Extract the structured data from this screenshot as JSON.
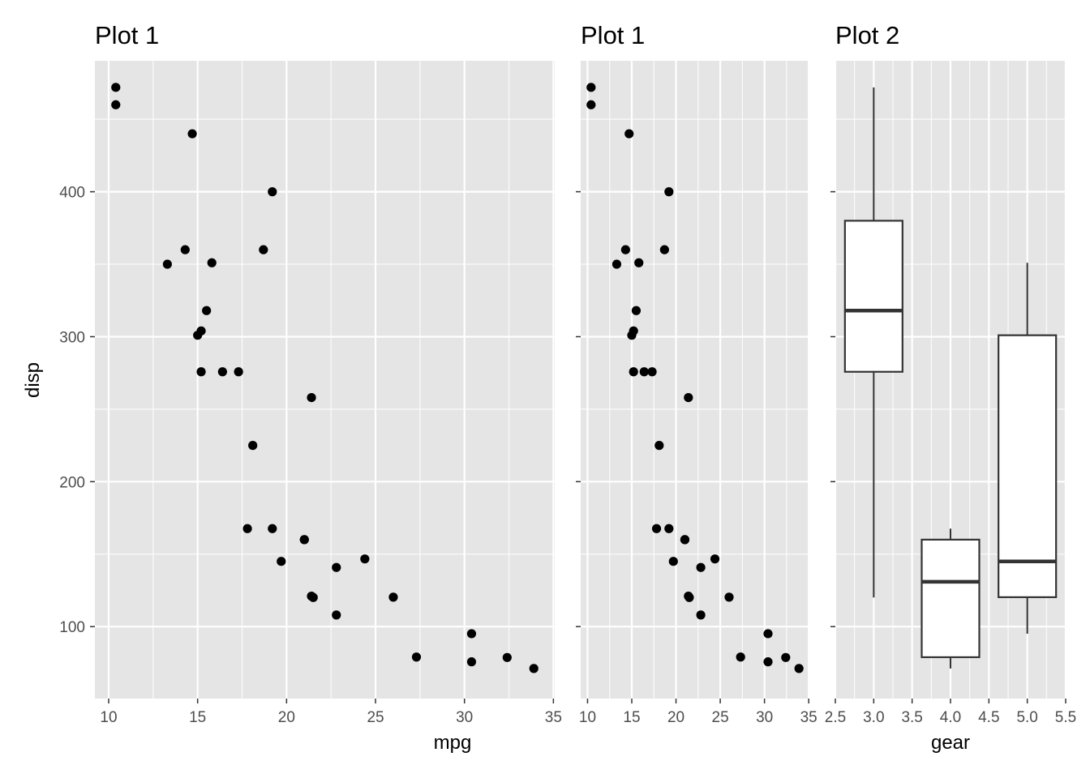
{
  "chart_data": [
    {
      "type": "scatter",
      "title": "Plot 1",
      "xlabel": "mpg",
      "ylabel": "disp",
      "xlim": [
        9.225,
        35.075
      ],
      "ylim": [
        50.35,
        490.35
      ],
      "x_ticks": [
        "10",
        "15",
        "20",
        "25",
        "30",
        "35"
      ],
      "y_ticks": [
        "100",
        "200",
        "300",
        "400"
      ],
      "points": [
        [
          21.0,
          160
        ],
        [
          21.0,
          160
        ],
        [
          22.8,
          108
        ],
        [
          21.4,
          258
        ],
        [
          18.7,
          360
        ],
        [
          18.1,
          225
        ],
        [
          14.3,
          360
        ],
        [
          24.4,
          146.7
        ],
        [
          22.8,
          140.8
        ],
        [
          19.2,
          167.6
        ],
        [
          17.8,
          167.6
        ],
        [
          16.4,
          275.8
        ],
        [
          17.3,
          275.8
        ],
        [
          15.2,
          275.8
        ],
        [
          10.4,
          472
        ],
        [
          10.4,
          460
        ],
        [
          14.7,
          440
        ],
        [
          32.4,
          78.7
        ],
        [
          30.4,
          75.7
        ],
        [
          33.9,
          71.1
        ],
        [
          21.5,
          120.1
        ],
        [
          15.5,
          318
        ],
        [
          15.2,
          304
        ],
        [
          13.3,
          350
        ],
        [
          19.2,
          400
        ],
        [
          27.3,
          79
        ],
        [
          26.0,
          120.3
        ],
        [
          30.4,
          95.1
        ],
        [
          15.8,
          351
        ],
        [
          19.7,
          145
        ],
        [
          15.0,
          301
        ],
        [
          21.4,
          121
        ]
      ]
    },
    {
      "type": "scatter",
      "title": "Plot 1",
      "xlabel": "",
      "ylabel": "",
      "xlim": [
        9.225,
        35.075
      ],
      "ylim": [
        50.35,
        490.35
      ],
      "x_ticks": [
        "10",
        "15",
        "20",
        "25",
        "30",
        "35"
      ],
      "points": [
        [
          21.0,
          160
        ],
        [
          21.0,
          160
        ],
        [
          22.8,
          108
        ],
        [
          21.4,
          258
        ],
        [
          18.7,
          360
        ],
        [
          18.1,
          225
        ],
        [
          14.3,
          360
        ],
        [
          24.4,
          146.7
        ],
        [
          22.8,
          140.8
        ],
        [
          19.2,
          167.6
        ],
        [
          17.8,
          167.6
        ],
        [
          16.4,
          275.8
        ],
        [
          17.3,
          275.8
        ],
        [
          15.2,
          275.8
        ],
        [
          10.4,
          472
        ],
        [
          10.4,
          460
        ],
        [
          14.7,
          440
        ],
        [
          32.4,
          78.7
        ],
        [
          30.4,
          75.7
        ],
        [
          33.9,
          71.1
        ],
        [
          21.5,
          120.1
        ],
        [
          15.5,
          318
        ],
        [
          15.2,
          304
        ],
        [
          13.3,
          350
        ],
        [
          19.2,
          400
        ],
        [
          27.3,
          79
        ],
        [
          26.0,
          120.3
        ],
        [
          30.4,
          95.1
        ],
        [
          15.8,
          351
        ],
        [
          19.7,
          145
        ],
        [
          15.0,
          301
        ],
        [
          21.4,
          121
        ]
      ]
    },
    {
      "type": "box",
      "title": "Plot 2",
      "xlabel": "gear",
      "ylabel": "",
      "xlim": [
        2.5,
        5.5
      ],
      "ylim": [
        50.35,
        490.35
      ],
      "x_ticks": [
        "2.5",
        "3.0",
        "3.5",
        "4.0",
        "4.5",
        "5.0",
        "5.5"
      ],
      "boxes": [
        {
          "x": 3,
          "min": 120.1,
          "q1": 275.8,
          "median": 318,
          "q3": 380,
          "max": 472
        },
        {
          "x": 4,
          "min": 71.1,
          "q1": 78.9,
          "median": 130.9,
          "q3": 160,
          "max": 167.6
        },
        {
          "x": 5,
          "min": 95.1,
          "q1": 120.3,
          "median": 145,
          "q3": 301,
          "max": 351
        }
      ]
    }
  ],
  "colors": {
    "panel_bg": "#e5e5e5",
    "grid": "#ffffff",
    "point": "#000000",
    "box_line": "#333333",
    "tick_text": "#4d4d4d"
  }
}
